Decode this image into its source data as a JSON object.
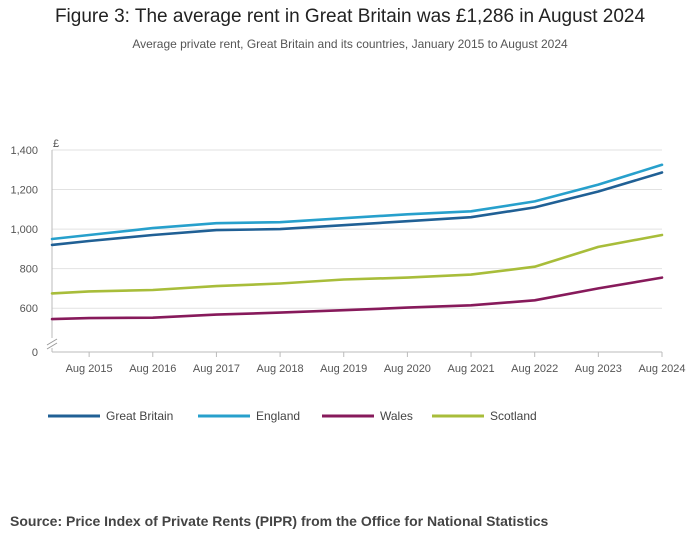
{
  "header": {
    "title": "Figure 3: The average rent in Great Britain was £1,286 in August 2024",
    "subtitle": "Average private rent, Great Britain and its countries, January 2015 to August 2024"
  },
  "footer": {
    "source": "Source: Price Index of Private Rents (PIPR) from the Office for National Statistics"
  },
  "chart_data": {
    "type": "line",
    "title": "Figure 3: The average rent in Great Britain was £1,286 in August 2024",
    "subtitle": "Average private rent, Great Britain and its countries, January 2015 to August 2024",
    "ylabel": "£",
    "xlabel": "",
    "y_axis_break": true,
    "ylim": [
      0,
      1400
    ],
    "y_ticks": [
      0,
      600,
      800,
      1000,
      1200,
      1400
    ],
    "y_tick_labels": [
      "0",
      "600",
      "800",
      "1,000",
      "1,200",
      "1,400"
    ],
    "x_ticks": [
      "Aug 2015",
      "Aug 2016",
      "Aug 2017",
      "Aug 2018",
      "Aug 2019",
      "Aug 2020",
      "Aug 2021",
      "Aug 2022",
      "Aug 2023",
      "Aug 2024"
    ],
    "x_start": "Jan 2015",
    "x_end": "Aug 2024",
    "grid": true,
    "legend_position": "bottom",
    "series": [
      {
        "name": "Great Britain",
        "color": "#206095",
        "points": [
          [
            "Jan 2015",
            920
          ],
          [
            "Aug 2015",
            940
          ],
          [
            "Aug 2016",
            970
          ],
          [
            "Aug 2017",
            995
          ],
          [
            "Aug 2018",
            1000
          ],
          [
            "Aug 2019",
            1020
          ],
          [
            "Aug 2020",
            1040
          ],
          [
            "Aug 2021",
            1060
          ],
          [
            "Aug 2022",
            1110
          ],
          [
            "Aug 2023",
            1190
          ],
          [
            "Aug 2024",
            1286
          ]
        ]
      },
      {
        "name": "England",
        "color": "#27A0CC",
        "points": [
          [
            "Jan 2015",
            950
          ],
          [
            "Aug 2015",
            970
          ],
          [
            "Aug 2016",
            1005
          ],
          [
            "Aug 2017",
            1030
          ],
          [
            "Aug 2018",
            1035
          ],
          [
            "Aug 2019",
            1055
          ],
          [
            "Aug 2020",
            1075
          ],
          [
            "Aug 2021",
            1090
          ],
          [
            "Aug 2022",
            1140
          ],
          [
            "Aug 2023",
            1225
          ],
          [
            "Aug 2024",
            1325
          ]
        ]
      },
      {
        "name": "Wales",
        "color": "#871A5B",
        "points": [
          [
            "Jan 2015",
            545
          ],
          [
            "Aug 2015",
            550
          ],
          [
            "Aug 2016",
            552
          ],
          [
            "Aug 2017",
            568
          ],
          [
            "Aug 2018",
            578
          ],
          [
            "Aug 2019",
            590
          ],
          [
            "Aug 2020",
            603
          ],
          [
            "Aug 2021",
            615
          ],
          [
            "Aug 2022",
            640
          ],
          [
            "Aug 2023",
            700
          ],
          [
            "Aug 2024",
            755
          ]
        ]
      },
      {
        "name": "Scotland",
        "color": "#A8BD3A",
        "points": [
          [
            "Jan 2015",
            675
          ],
          [
            "Aug 2015",
            685
          ],
          [
            "Aug 2016",
            692
          ],
          [
            "Aug 2017",
            712
          ],
          [
            "Aug 2018",
            725
          ],
          [
            "Aug 2019",
            745
          ],
          [
            "Aug 2020",
            755
          ],
          [
            "Aug 2021",
            770
          ],
          [
            "Aug 2022",
            810
          ],
          [
            "Aug 2023",
            910
          ],
          [
            "Aug 2024",
            970
          ]
        ]
      }
    ]
  }
}
